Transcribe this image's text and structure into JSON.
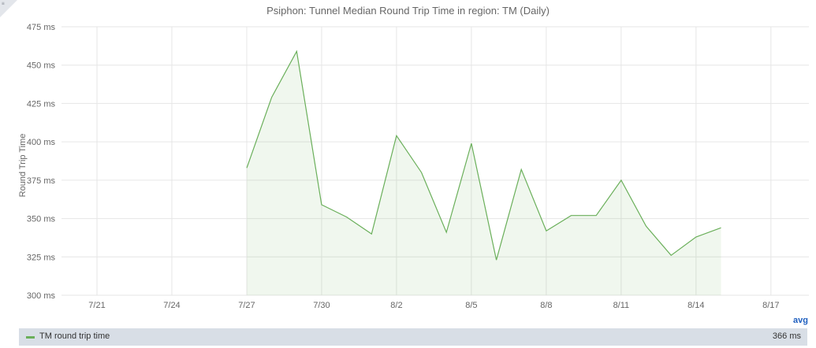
{
  "corner_label": "≡",
  "chart_data": {
    "type": "area",
    "title": "Psiphon: Tunnel Median Round Trip Time in region: TM (Daily)",
    "ylabel": "Round Trip Time",
    "xlabel": "",
    "ylim": [
      300,
      475
    ],
    "y_ticks": [
      300,
      325,
      350,
      375,
      400,
      425,
      450,
      475
    ],
    "y_tick_labels": [
      "300 ms",
      "325 ms",
      "350 ms",
      "375 ms",
      "400 ms",
      "425 ms",
      "450 ms",
      "475 ms"
    ],
    "x_ticks": [
      "7/21",
      "7/24",
      "7/27",
      "7/30",
      "8/2",
      "8/5",
      "8/8",
      "8/11",
      "8/14",
      "8/17"
    ],
    "grid": true,
    "series": [
      {
        "name": "TM round trip time",
        "color": "#6aaf5a",
        "x": [
          "7/27",
          "7/28",
          "7/29",
          "7/30",
          "7/31",
          "8/1",
          "8/2",
          "8/3",
          "8/4",
          "8/5",
          "8/6",
          "8/7",
          "8/8",
          "8/9",
          "8/10",
          "8/11",
          "8/12",
          "8/13",
          "8/14",
          "8/15"
        ],
        "values": [
          383,
          429,
          459,
          359,
          351,
          340,
          404,
          380,
          341,
          399,
          323,
          382,
          342,
          352,
          352,
          375,
          345,
          326,
          338,
          344
        ]
      }
    ]
  },
  "legend": {
    "label": "TM round trip time",
    "value": "366 ms",
    "toggle": "avg"
  }
}
